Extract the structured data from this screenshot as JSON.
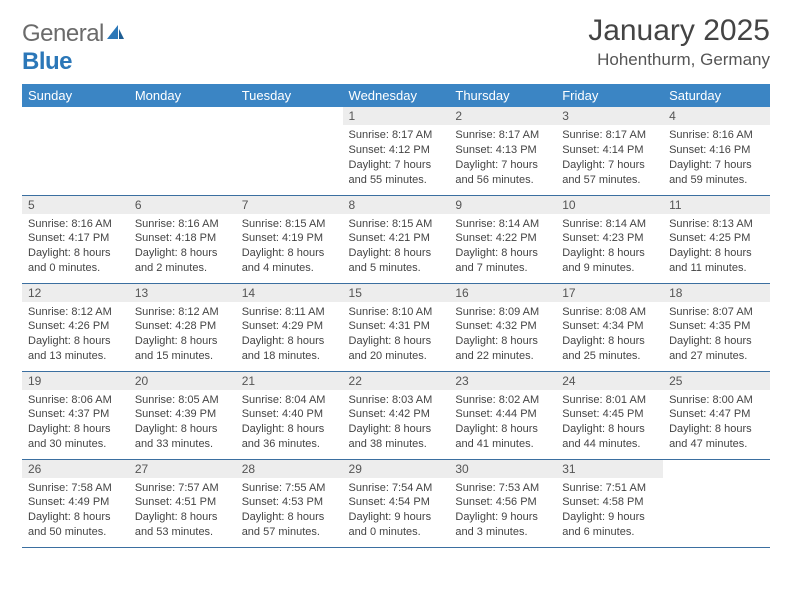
{
  "brand": {
    "general": "General",
    "blue": "Blue"
  },
  "header": {
    "title": "January 2025",
    "location": "Hohenthurm, Germany"
  },
  "colors": {
    "header_bg": "#3b85c4",
    "header_text": "#ffffff",
    "daynum_bg": "#ededed",
    "row_border": "#3b6fa0",
    "logo_gray": "#6b6b6b",
    "logo_blue": "#2b77b8"
  },
  "weekdays": [
    "Sunday",
    "Monday",
    "Tuesday",
    "Wednesday",
    "Thursday",
    "Friday",
    "Saturday"
  ],
  "weeks": [
    [
      {
        "num": "",
        "sunrise": "",
        "sunset": "",
        "daylight": "",
        "empty": true
      },
      {
        "num": "",
        "sunrise": "",
        "sunset": "",
        "daylight": "",
        "empty": true
      },
      {
        "num": "",
        "sunrise": "",
        "sunset": "",
        "daylight": "",
        "empty": true
      },
      {
        "num": "1",
        "sunrise": "Sunrise: 8:17 AM",
        "sunset": "Sunset: 4:12 PM",
        "daylight": "Daylight: 7 hours and 55 minutes."
      },
      {
        "num": "2",
        "sunrise": "Sunrise: 8:17 AM",
        "sunset": "Sunset: 4:13 PM",
        "daylight": "Daylight: 7 hours and 56 minutes."
      },
      {
        "num": "3",
        "sunrise": "Sunrise: 8:17 AM",
        "sunset": "Sunset: 4:14 PM",
        "daylight": "Daylight: 7 hours and 57 minutes."
      },
      {
        "num": "4",
        "sunrise": "Sunrise: 8:16 AM",
        "sunset": "Sunset: 4:16 PM",
        "daylight": "Daylight: 7 hours and 59 minutes."
      }
    ],
    [
      {
        "num": "5",
        "sunrise": "Sunrise: 8:16 AM",
        "sunset": "Sunset: 4:17 PM",
        "daylight": "Daylight: 8 hours and 0 minutes."
      },
      {
        "num": "6",
        "sunrise": "Sunrise: 8:16 AM",
        "sunset": "Sunset: 4:18 PM",
        "daylight": "Daylight: 8 hours and 2 minutes."
      },
      {
        "num": "7",
        "sunrise": "Sunrise: 8:15 AM",
        "sunset": "Sunset: 4:19 PM",
        "daylight": "Daylight: 8 hours and 4 minutes."
      },
      {
        "num": "8",
        "sunrise": "Sunrise: 8:15 AM",
        "sunset": "Sunset: 4:21 PM",
        "daylight": "Daylight: 8 hours and 5 minutes."
      },
      {
        "num": "9",
        "sunrise": "Sunrise: 8:14 AM",
        "sunset": "Sunset: 4:22 PM",
        "daylight": "Daylight: 8 hours and 7 minutes."
      },
      {
        "num": "10",
        "sunrise": "Sunrise: 8:14 AM",
        "sunset": "Sunset: 4:23 PM",
        "daylight": "Daylight: 8 hours and 9 minutes."
      },
      {
        "num": "11",
        "sunrise": "Sunrise: 8:13 AM",
        "sunset": "Sunset: 4:25 PM",
        "daylight": "Daylight: 8 hours and 11 minutes."
      }
    ],
    [
      {
        "num": "12",
        "sunrise": "Sunrise: 8:12 AM",
        "sunset": "Sunset: 4:26 PM",
        "daylight": "Daylight: 8 hours and 13 minutes."
      },
      {
        "num": "13",
        "sunrise": "Sunrise: 8:12 AM",
        "sunset": "Sunset: 4:28 PM",
        "daylight": "Daylight: 8 hours and 15 minutes."
      },
      {
        "num": "14",
        "sunrise": "Sunrise: 8:11 AM",
        "sunset": "Sunset: 4:29 PM",
        "daylight": "Daylight: 8 hours and 18 minutes."
      },
      {
        "num": "15",
        "sunrise": "Sunrise: 8:10 AM",
        "sunset": "Sunset: 4:31 PM",
        "daylight": "Daylight: 8 hours and 20 minutes."
      },
      {
        "num": "16",
        "sunrise": "Sunrise: 8:09 AM",
        "sunset": "Sunset: 4:32 PM",
        "daylight": "Daylight: 8 hours and 22 minutes."
      },
      {
        "num": "17",
        "sunrise": "Sunrise: 8:08 AM",
        "sunset": "Sunset: 4:34 PM",
        "daylight": "Daylight: 8 hours and 25 minutes."
      },
      {
        "num": "18",
        "sunrise": "Sunrise: 8:07 AM",
        "sunset": "Sunset: 4:35 PM",
        "daylight": "Daylight: 8 hours and 27 minutes."
      }
    ],
    [
      {
        "num": "19",
        "sunrise": "Sunrise: 8:06 AM",
        "sunset": "Sunset: 4:37 PM",
        "daylight": "Daylight: 8 hours and 30 minutes."
      },
      {
        "num": "20",
        "sunrise": "Sunrise: 8:05 AM",
        "sunset": "Sunset: 4:39 PM",
        "daylight": "Daylight: 8 hours and 33 minutes."
      },
      {
        "num": "21",
        "sunrise": "Sunrise: 8:04 AM",
        "sunset": "Sunset: 4:40 PM",
        "daylight": "Daylight: 8 hours and 36 minutes."
      },
      {
        "num": "22",
        "sunrise": "Sunrise: 8:03 AM",
        "sunset": "Sunset: 4:42 PM",
        "daylight": "Daylight: 8 hours and 38 minutes."
      },
      {
        "num": "23",
        "sunrise": "Sunrise: 8:02 AM",
        "sunset": "Sunset: 4:44 PM",
        "daylight": "Daylight: 8 hours and 41 minutes."
      },
      {
        "num": "24",
        "sunrise": "Sunrise: 8:01 AM",
        "sunset": "Sunset: 4:45 PM",
        "daylight": "Daylight: 8 hours and 44 minutes."
      },
      {
        "num": "25",
        "sunrise": "Sunrise: 8:00 AM",
        "sunset": "Sunset: 4:47 PM",
        "daylight": "Daylight: 8 hours and 47 minutes."
      }
    ],
    [
      {
        "num": "26",
        "sunrise": "Sunrise: 7:58 AM",
        "sunset": "Sunset: 4:49 PM",
        "daylight": "Daylight: 8 hours and 50 minutes."
      },
      {
        "num": "27",
        "sunrise": "Sunrise: 7:57 AM",
        "sunset": "Sunset: 4:51 PM",
        "daylight": "Daylight: 8 hours and 53 minutes."
      },
      {
        "num": "28",
        "sunrise": "Sunrise: 7:55 AM",
        "sunset": "Sunset: 4:53 PM",
        "daylight": "Daylight: 8 hours and 57 minutes."
      },
      {
        "num": "29",
        "sunrise": "Sunrise: 7:54 AM",
        "sunset": "Sunset: 4:54 PM",
        "daylight": "Daylight: 9 hours and 0 minutes."
      },
      {
        "num": "30",
        "sunrise": "Sunrise: 7:53 AM",
        "sunset": "Sunset: 4:56 PM",
        "daylight": "Daylight: 9 hours and 3 minutes."
      },
      {
        "num": "31",
        "sunrise": "Sunrise: 7:51 AM",
        "sunset": "Sunset: 4:58 PM",
        "daylight": "Daylight: 9 hours and 6 minutes."
      },
      {
        "num": "",
        "sunrise": "",
        "sunset": "",
        "daylight": "",
        "empty": true
      }
    ]
  ]
}
